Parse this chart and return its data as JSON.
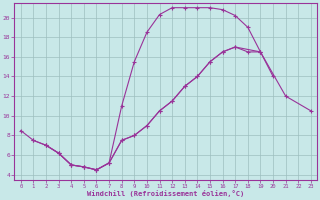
{
  "bg_color": "#c8e8e8",
  "line_color": "#993399",
  "grid_color": "#9dbfbf",
  "xlabel": "Windchill (Refroidissement éolien,°C)",
  "xmin": -0.5,
  "xmax": 23.5,
  "ymin": 3.5,
  "ymax": 21.5,
  "yticks": [
    4,
    6,
    8,
    10,
    12,
    14,
    16,
    18,
    20
  ],
  "xticks": [
    0,
    1,
    2,
    3,
    4,
    5,
    6,
    7,
    8,
    9,
    10,
    11,
    12,
    13,
    14,
    15,
    16,
    17,
    18,
    19,
    20,
    21,
    22,
    23
  ],
  "curve1_x": [
    0,
    1,
    2,
    3,
    4,
    5,
    6,
    7,
    8,
    9,
    10,
    11,
    12,
    13,
    14,
    15,
    16,
    17,
    18,
    19,
    20
  ],
  "curve1_y": [
    8.5,
    7.5,
    7.0,
    6.2,
    5.0,
    4.8,
    4.5,
    5.2,
    11.0,
    15.5,
    18.5,
    20.3,
    21.0,
    21.0,
    21.0,
    21.0,
    20.8,
    20.2,
    19.0,
    16.5,
    14.0
  ],
  "curve2_x": [
    2,
    3,
    4,
    5,
    6,
    7,
    8,
    9,
    10,
    11,
    12,
    13,
    14,
    15,
    16,
    17,
    18,
    19
  ],
  "curve2_y": [
    7.0,
    6.2,
    5.0,
    4.8,
    4.5,
    5.2,
    7.5,
    8.0,
    9.0,
    10.5,
    11.5,
    13.0,
    14.0,
    15.5,
    16.5,
    17.0,
    16.5,
    16.5
  ],
  "curve3_x": [
    1,
    2,
    3,
    4,
    5,
    6,
    7,
    8,
    9,
    10,
    11,
    12,
    13,
    14,
    15,
    16,
    17,
    19,
    21,
    23
  ],
  "curve3_y": [
    7.5,
    7.0,
    6.2,
    5.0,
    4.8,
    4.5,
    5.2,
    7.5,
    8.0,
    9.0,
    10.5,
    11.5,
    13.0,
    14.0,
    15.5,
    16.5,
    17.0,
    16.5,
    12.0,
    10.5
  ]
}
